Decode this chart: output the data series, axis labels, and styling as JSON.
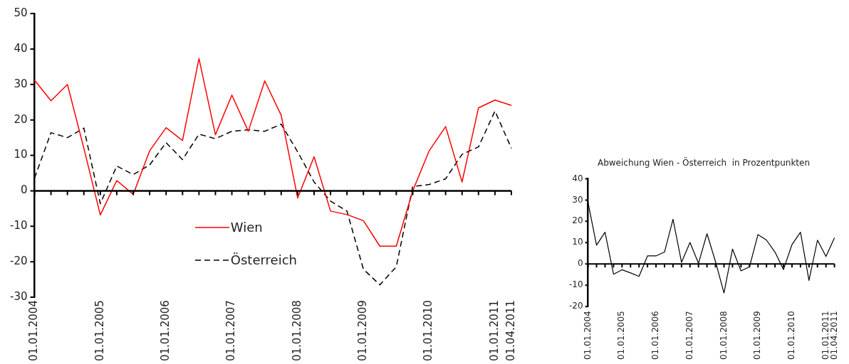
{
  "chart_data": [
    {
      "type": "line",
      "categories": [
        "01.01.2004",
        null,
        null,
        null,
        "01.01.2005",
        null,
        null,
        null,
        "01.01.2006",
        null,
        null,
        null,
        "01.01.2007",
        null,
        null,
        null,
        "01.01.2008",
        null,
        null,
        null,
        "01.01.2009",
        null,
        null,
        null,
        "01.01.2010",
        null,
        null,
        null,
        "01.01.2011",
        "01.04.2011"
      ],
      "series": [
        {
          "name": "Wien",
          "color": "#ff0000",
          "line_style": "solid",
          "values": [
            31.2,
            25.4,
            30,
            12,
            -6.8,
            2.9,
            -1,
            11.3,
            17.8,
            14.2,
            37.3,
            15.8,
            27,
            16.8,
            31,
            21.3,
            -2,
            9.6,
            -5.7,
            -6.7,
            -8.4,
            -15.6,
            -15.6,
            0,
            11.3,
            18.1,
            2.5,
            23.4,
            25.6,
            24.1
          ]
        },
        {
          "name": "Österreich",
          "color": "#000000",
          "line_style": "dashed",
          "values": [
            3.6,
            16.4,
            15,
            17.7,
            -3.6,
            7,
            4.6,
            7.3,
            13.6,
            8.8,
            16,
            14.7,
            16.8,
            17.2,
            16.8,
            18.8,
            11,
            2.5,
            -2.9,
            -5.7,
            -22.1,
            -26.5,
            -21.4,
            1.2,
            1.8,
            3.4,
            10.3,
            12.4,
            22.5,
            12
          ]
        }
      ],
      "ylim": [
        -30,
        50
      ],
      "yticks": [
        -30,
        -20,
        -10,
        0,
        10,
        20,
        30,
        40,
        50
      ],
      "ref_lines": [
        {
          "axis": "y",
          "value": 0,
          "color": "#000000"
        }
      ],
      "grid": false,
      "legend": "center",
      "marker": "none"
    },
    {
      "type": "line",
      "title": "Abweichung Wien - Österreich  in Prozentpunkten",
      "categories": [
        "01.01.2004",
        null,
        null,
        null,
        "01.01.2005",
        null,
        null,
        null,
        "01.01.2006",
        null,
        null,
        null,
        "01.01.2007",
        null,
        null,
        null,
        "01.01.2008",
        null,
        null,
        null,
        "01.01.2009",
        null,
        null,
        null,
        "01.01.2010",
        null,
        null,
        null,
        "01.01.2011",
        "01.04.2011"
      ],
      "series": [
        {
          "color": "#000000",
          "line_style": "solid",
          "values": [
            28.8,
            8.8,
            14.9,
            -4.8,
            -2.7,
            -4.2,
            -5.8,
            3.8,
            3.8,
            5.6,
            21,
            0.8,
            10.1,
            0.3,
            14.2,
            1.1,
            -13.6,
            7,
            -3.2,
            -1.3,
            13.8,
            11.2,
            5.6,
            -2.6,
            9.1,
            14.9,
            -7.7,
            11.2,
            3.5,
            12.3
          ]
        }
      ],
      "ylim": [
        -20,
        40
      ],
      "yticks": [
        -20,
        -10,
        0,
        10,
        20,
        30,
        40
      ],
      "ref_lines": [
        {
          "axis": "y",
          "value": 0,
          "color": "#000000"
        }
      ],
      "grid": false,
      "legend": false,
      "marker": "none"
    }
  ]
}
